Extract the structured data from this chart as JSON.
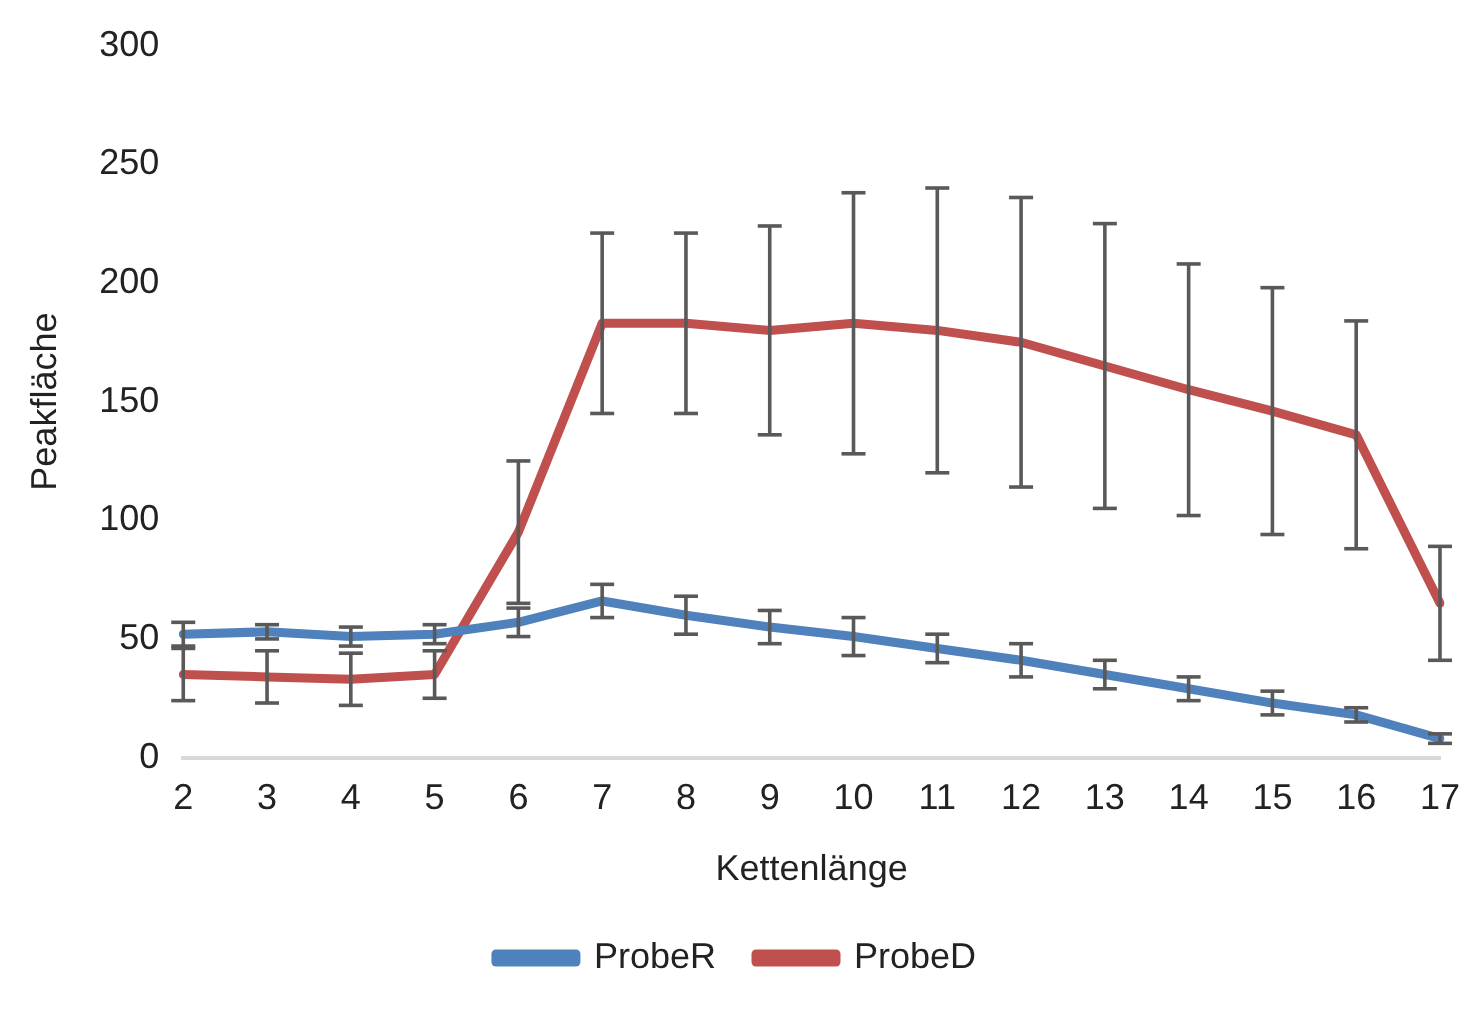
{
  "chart_data": {
    "type": "line",
    "xlabel": "Kettenlänge",
    "ylabel": "Peakfläche",
    "categories": [
      "2",
      "3",
      "4",
      "5",
      "6",
      "7",
      "8",
      "9",
      "10",
      "11",
      "12",
      "13",
      "14",
      "15",
      "16",
      "17"
    ],
    "series": [
      {
        "name": "ProbeR",
        "color": "#4f81bd",
        "values": [
          52,
          53,
          51,
          52,
          57,
          66,
          60,
          55,
          51,
          46,
          41,
          35,
          29,
          23,
          18,
          8
        ],
        "errors": [
          5,
          3,
          4,
          4,
          6,
          7,
          8,
          7,
          8,
          6,
          7,
          6,
          5,
          5,
          3,
          2
        ]
      },
      {
        "name": "ProbeD",
        "color": "#c0504d",
        "values": [
          35,
          34,
          33,
          35,
          95,
          183,
          183,
          180,
          183,
          180,
          175,
          165,
          155,
          146,
          136,
          65
        ],
        "errors": [
          11,
          11,
          11,
          10,
          30,
          38,
          38,
          44,
          55,
          60,
          61,
          60,
          53,
          52,
          48,
          24
        ]
      }
    ],
    "ylim": [
      0,
      300
    ],
    "yticks": [
      0,
      50,
      100,
      150,
      200,
      250,
      300
    ],
    "grid": false,
    "legend": "bottom",
    "marker": "none",
    "line_style": "solid"
  }
}
